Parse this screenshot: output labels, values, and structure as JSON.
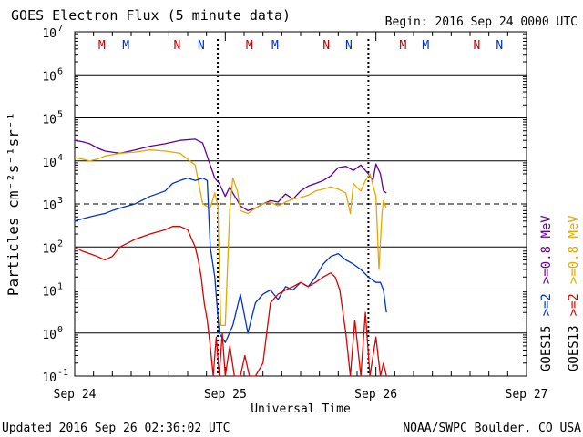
{
  "chart_data": {
    "type": "line",
    "title": "GOES Electron Flux (5 minute data)",
    "begin_label": "Begin: 2016 Sep 24 0000 UTC",
    "xlabel": "Universal Time",
    "ylabel": "Particles cm⁻²s⁻¹sr⁻¹",
    "x_unit": "days since 2016 Sep 24 0000 UTC",
    "xlim": [
      0,
      3
    ],
    "x_ticks": [
      {
        "value": 0,
        "label": "Sep 24"
      },
      {
        "value": 1,
        "label": "Sep 25"
      },
      {
        "value": 2,
        "label": "Sep 26"
      },
      {
        "value": 3,
        "label": "Sep 27"
      }
    ],
    "y_scale": "log",
    "ylim": [
      0.1,
      10000000
    ],
    "y_ticks": [
      {
        "value": 0.1,
        "mantissa": "10",
        "exp": "-1"
      },
      {
        "value": 1,
        "mantissa": "10",
        "exp": "0"
      },
      {
        "value": 10,
        "mantissa": "10",
        "exp": "1"
      },
      {
        "value": 100,
        "mantissa": "10",
        "exp": "2"
      },
      {
        "value": 1000,
        "mantissa": "10",
        "exp": "3"
      },
      {
        "value": 10000,
        "mantissa": "10",
        "exp": "4"
      },
      {
        "value": 100000,
        "mantissa": "10",
        "exp": "5"
      },
      {
        "value": 1000000,
        "mantissa": "10",
        "exp": "6"
      },
      {
        "value": 10000000,
        "mantissa": "10",
        "exp": "7"
      }
    ],
    "threshold_line": 1000,
    "magnetopause_markers": [
      {
        "label": "M",
        "x": 0.18,
        "color": "#cc0000"
      },
      {
        "label": "M",
        "x": 0.34,
        "color": "#0033cc"
      },
      {
        "label": "N",
        "x": 0.68,
        "color": "#cc0000"
      },
      {
        "label": "N",
        "x": 0.84,
        "color": "#0033cc"
      },
      {
        "label": "M",
        "x": 1.16,
        "color": "#cc0000"
      },
      {
        "label": "M",
        "x": 1.33,
        "color": "#0033cc"
      },
      {
        "label": "N",
        "x": 1.67,
        "color": "#cc0000"
      },
      {
        "label": "N",
        "x": 1.82,
        "color": "#0033cc"
      },
      {
        "label": "M",
        "x": 2.18,
        "color": "#cc0000"
      },
      {
        "label": "M",
        "x": 2.33,
        "color": "#0033cc"
      },
      {
        "label": "N",
        "x": 2.67,
        "color": "#cc0000"
      },
      {
        "label": "N",
        "x": 2.82,
        "color": "#0033cc"
      }
    ],
    "dashed_verticals": [
      0.95,
      1.95
    ],
    "series": [
      {
        "name": "GOES15 >=0.8 MeV",
        "color": "#660099",
        "x": [
          0,
          0.05,
          0.1,
          0.15,
          0.2,
          0.3,
          0.4,
          0.5,
          0.6,
          0.7,
          0.8,
          0.85,
          0.9,
          0.93,
          0.96,
          1.0,
          1.03,
          1.05,
          1.08,
          1.1,
          1.15,
          1.2,
          1.25,
          1.3,
          1.35,
          1.4,
          1.45,
          1.5,
          1.55,
          1.6,
          1.65,
          1.7,
          1.75,
          1.8,
          1.85,
          1.9,
          1.95,
          1.98,
          2.0,
          2.03,
          2.05,
          2.07
        ],
        "y": [
          30000,
          28000,
          25000,
          20000,
          17000,
          15000,
          18000,
          22000,
          25000,
          30000,
          32000,
          26000,
          8000,
          4000,
          3000,
          1500,
          2500,
          1800,
          1200,
          900,
          700,
          800,
          1000,
          1200,
          1100,
          1700,
          1300,
          2000,
          2600,
          3000,
          3500,
          4500,
          7000,
          7500,
          6000,
          8000,
          5000,
          3500,
          8500,
          5000,
          2000,
          1800
        ]
      },
      {
        "name": "GOES13 >=0.8 MeV",
        "color": "#e6a800",
        "x": [
          0,
          0.05,
          0.1,
          0.15,
          0.2,
          0.3,
          0.4,
          0.5,
          0.6,
          0.7,
          0.8,
          0.85,
          0.9,
          0.93,
          0.95,
          0.97,
          1.0,
          1.03,
          1.05,
          1.08,
          1.1,
          1.15,
          1.2,
          1.25,
          1.3,
          1.35,
          1.4,
          1.45,
          1.5,
          1.55,
          1.6,
          1.65,
          1.7,
          1.75,
          1.8,
          1.83,
          1.85,
          1.87,
          1.9,
          1.93,
          1.96,
          2.0,
          2.02,
          2.04,
          2.05,
          2.07
        ],
        "y": [
          12000,
          11000,
          10000,
          11000,
          13000,
          15000,
          16000,
          18000,
          17000,
          15000,
          8000,
          1000,
          800,
          1800,
          900,
          1.5,
          1.5,
          800,
          4000,
          2000,
          700,
          600,
          800,
          1000,
          1100,
          900,
          1100,
          1300,
          1400,
          1600,
          2000,
          2200,
          2500,
          2200,
          1800,
          600,
          3000,
          2500,
          2000,
          3500,
          5000,
          1500,
          30,
          600,
          1200,
          800
        ]
      },
      {
        "name": "GOES15 >=2 MeV",
        "color": "#0033cc",
        "x": [
          0,
          0.05,
          0.1,
          0.15,
          0.2,
          0.25,
          0.3,
          0.4,
          0.5,
          0.6,
          0.65,
          0.7,
          0.75,
          0.8,
          0.85,
          0.88,
          0.9,
          0.93,
          0.96,
          1.0,
          1.05,
          1.1,
          1.15,
          1.2,
          1.25,
          1.3,
          1.35,
          1.4,
          1.45,
          1.5,
          1.55,
          1.6,
          1.65,
          1.7,
          1.75,
          1.8,
          1.85,
          1.9,
          1.95,
          2.0,
          2.03,
          2.05,
          2.07
        ],
        "y": [
          400,
          450,
          500,
          550,
          600,
          700,
          800,
          1000,
          1500,
          2000,
          3000,
          3500,
          4000,
          3500,
          4000,
          3500,
          100,
          20,
          1,
          0.6,
          1.5,
          8,
          1,
          5,
          8,
          10,
          6,
          12,
          10,
          15,
          12,
          20,
          40,
          60,
          70,
          50,
          40,
          30,
          20,
          15,
          15,
          10,
          3
        ]
      },
      {
        "name": "GOES13 >=2 MeV",
        "color": "#dd0000",
        "x": [
          0,
          0.05,
          0.1,
          0.15,
          0.2,
          0.25,
          0.3,
          0.4,
          0.5,
          0.6,
          0.65,
          0.7,
          0.75,
          0.8,
          0.82,
          0.84,
          0.86,
          0.88,
          0.9,
          0.92,
          0.94,
          0.96,
          0.98,
          1.0,
          1.03,
          1.06,
          1.1,
          1.13,
          1.16,
          1.2,
          1.25,
          1.3,
          1.35,
          1.4,
          1.45,
          1.5,
          1.55,
          1.6,
          1.65,
          1.7,
          1.73,
          1.76,
          1.8,
          1.83,
          1.86,
          1.9,
          1.93,
          1.96,
          2.0,
          2.03,
          2.05,
          2.07
        ],
        "y": [
          100,
          80,
          70,
          60,
          50,
          60,
          100,
          150,
          200,
          250,
          300,
          300,
          250,
          100,
          50,
          20,
          5,
          2,
          0.5,
          0.1,
          0.8,
          0.1,
          1,
          0.1,
          0.5,
          0.1,
          0.1,
          0.3,
          0.1,
          0.1,
          0.2,
          5,
          8,
          10,
          12,
          15,
          12,
          15,
          20,
          25,
          20,
          10,
          1,
          0.1,
          2,
          0.1,
          3,
          0.1,
          0.8,
          0.1,
          0.2,
          0.1
        ]
      }
    ],
    "right_legend": {
      "col1": [
        {
          "text": "GOES15",
          "color": "#000000"
        },
        {
          "text": ">=2",
          "color": "#0033cc"
        },
        {
          "text": ">=0.8 MeV",
          "color": "#660099"
        }
      ],
      "col2": [
        {
          "text": "GOES13",
          "color": "#000000"
        },
        {
          "text": ">=2",
          "color": "#dd0000"
        },
        {
          "text": ">=0.8 MeV",
          "color": "#e6a800"
        }
      ]
    },
    "footer_left": "Updated 2016 Sep 26 02:36:02 UTC",
    "footer_right": "NOAA/SWPC Boulder, CO USA"
  }
}
